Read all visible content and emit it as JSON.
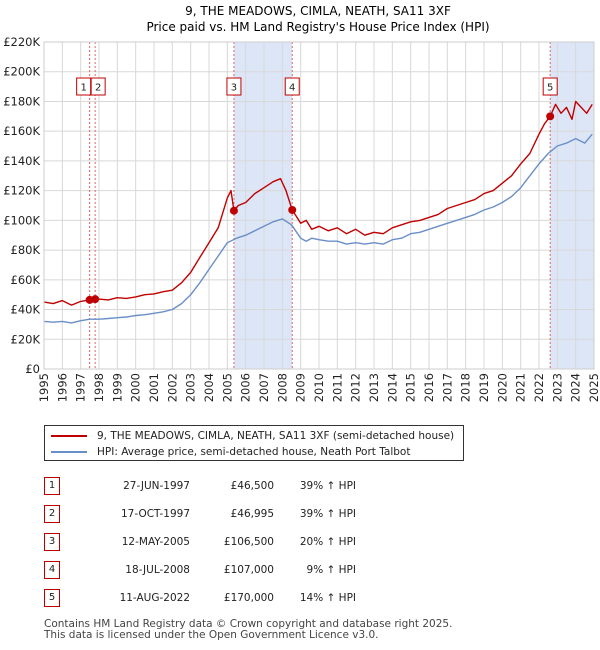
{
  "chart_data": {
    "type": "line",
    "title": "9, THE MEADOWS, CIMLA, NEATH, SA11 3XF",
    "subtitle": "Price paid vs. HM Land Registry's House Price Index (HPI)",
    "xlim": [
      1995,
      2025
    ],
    "ylim": [
      0,
      220000
    ],
    "y_ticks": [
      0,
      20000,
      40000,
      60000,
      80000,
      100000,
      120000,
      140000,
      160000,
      180000,
      200000,
      220000
    ],
    "y_tick_labels": [
      "£0",
      "£20K",
      "£40K",
      "£60K",
      "£80K",
      "£100K",
      "£120K",
      "£140K",
      "£160K",
      "£180K",
      "£200K",
      "£220K"
    ],
    "x_ticks": [
      1995,
      1996,
      1997,
      1998,
      1999,
      2000,
      2001,
      2002,
      2003,
      2004,
      2005,
      2006,
      2007,
      2008,
      2009,
      2010,
      2011,
      2012,
      2013,
      2014,
      2015,
      2016,
      2017,
      2018,
      2019,
      2020,
      2021,
      2022,
      2023,
      2024,
      2025
    ],
    "x_tick_labels": [
      "1995",
      "1996",
      "1997",
      "1998",
      "1999",
      "2000",
      "2001",
      "2002",
      "2003",
      "2004",
      "2005",
      "2006",
      "2007",
      "2008",
      "2009",
      "2010",
      "2011",
      "2012",
      "2013",
      "2014",
      "2015",
      "2016",
      "2017",
      "2018",
      "2019",
      "2020",
      "2021",
      "2022",
      "2023",
      "2024",
      "2025"
    ],
    "shaded_ranges": [
      [
        2005.36,
        2008.54
      ],
      [
        2022.61,
        2025.0
      ]
    ],
    "colors": {
      "property": "#c00000",
      "hpi": "#6a8fc8",
      "shade": "#dde6f7",
      "grid": "#d8d8d8",
      "sale_line": "#e06666"
    },
    "series": [
      {
        "name": "9, THE MEADOWS, CIMLA, NEATH, SA11 3XF (semi-detached house)",
        "color": "#c00000",
        "x": [
          1995.0,
          1995.5,
          1996.0,
          1996.5,
          1997.0,
          1997.49,
          1997.79,
          1998.0,
          1998.5,
          1999.0,
          1999.5,
          2000.0,
          2000.5,
          2001.0,
          2001.5,
          2002.0,
          2002.5,
          2003.0,
          2003.5,
          2004.0,
          2004.5,
          2005.0,
          2005.2,
          2005.36,
          2005.6,
          2006.0,
          2006.5,
          2007.0,
          2007.5,
          2007.9,
          2008.2,
          2008.54,
          2008.8,
          2009.0,
          2009.3,
          2009.6,
          2010.0,
          2010.5,
          2011.0,
          2011.5,
          2012.0,
          2012.5,
          2013.0,
          2013.5,
          2014.0,
          2014.5,
          2015.0,
          2015.5,
          2016.0,
          2016.5,
          2017.0,
          2017.5,
          2018.0,
          2018.5,
          2019.0,
          2019.5,
          2020.0,
          2020.5,
          2021.0,
          2021.5,
          2022.0,
          2022.3,
          2022.61,
          2022.9,
          2023.2,
          2023.5,
          2023.8,
          2024.0,
          2024.3,
          2024.6,
          2024.9
        ],
        "y": [
          45000,
          44000,
          46000,
          43000,
          45500,
          46500,
          46995,
          47000,
          46500,
          48000,
          47500,
          48500,
          50000,
          50500,
          52000,
          53000,
          58000,
          65000,
          75000,
          85000,
          95000,
          115000,
          120000,
          106500,
          110000,
          112000,
          118000,
          122000,
          126000,
          128000,
          120000,
          107000,
          102000,
          98000,
          100000,
          94000,
          96000,
          93000,
          95000,
          91000,
          94000,
          90000,
          92000,
          91000,
          95000,
          97000,
          99000,
          100000,
          102000,
          104000,
          108000,
          110000,
          112000,
          114000,
          118000,
          120000,
          125000,
          130000,
          138000,
          145000,
          158000,
          165000,
          170000,
          178000,
          172000,
          176000,
          168000,
          180000,
          176000,
          172000,
          178000
        ]
      },
      {
        "name": "HPI: Average price, semi-detached house, Neath Port Talbot",
        "color": "#6a8fc8",
        "x": [
          1995.0,
          1995.5,
          1996.0,
          1996.5,
          1997.0,
          1997.5,
          1998.0,
          1998.5,
          1999.0,
          1999.5,
          2000.0,
          2000.5,
          2001.0,
          2001.5,
          2002.0,
          2002.5,
          2003.0,
          2003.5,
          2004.0,
          2004.5,
          2005.0,
          2005.5,
          2006.0,
          2006.5,
          2007.0,
          2007.5,
          2008.0,
          2008.5,
          2009.0,
          2009.3,
          2009.6,
          2010.0,
          2010.5,
          2011.0,
          2011.5,
          2012.0,
          2012.5,
          2013.0,
          2013.5,
          2014.0,
          2014.5,
          2015.0,
          2015.5,
          2016.0,
          2016.5,
          2017.0,
          2017.5,
          2018.0,
          2018.5,
          2019.0,
          2019.5,
          2020.0,
          2020.5,
          2021.0,
          2021.5,
          2022.0,
          2022.5,
          2023.0,
          2023.5,
          2024.0,
          2024.5,
          2024.9
        ],
        "y": [
          32000,
          31500,
          32000,
          31000,
          32500,
          33500,
          33500,
          34000,
          34500,
          35000,
          36000,
          36500,
          37500,
          38500,
          40000,
          44000,
          50000,
          58000,
          67000,
          76000,
          85000,
          88000,
          90000,
          93000,
          96000,
          99000,
          101000,
          97000,
          88000,
          86000,
          88000,
          87000,
          86000,
          86000,
          84000,
          85000,
          84000,
          85000,
          84000,
          87000,
          88000,
          91000,
          92000,
          94000,
          96000,
          98000,
          100000,
          102000,
          104000,
          107000,
          109000,
          112000,
          116000,
          122000,
          130000,
          138000,
          145000,
          150000,
          152000,
          155000,
          152000,
          158000
        ]
      }
    ],
    "sales": [
      {
        "label": "1",
        "x": 1997.49,
        "price": 46500
      },
      {
        "label": "2",
        "x": 1997.79,
        "price": 46995
      },
      {
        "label": "3",
        "x": 2005.36,
        "price": 106500
      },
      {
        "label": "4",
        "x": 2008.54,
        "price": 107000
      },
      {
        "label": "5",
        "x": 2022.61,
        "price": 170000
      }
    ]
  },
  "legend": {
    "property_label": "9, THE MEADOWS, CIMLA, NEATH, SA11 3XF (semi-detached house)",
    "hpi_label": "HPI: Average price, semi-detached house, Neath Port Talbot"
  },
  "table": {
    "rows": [
      {
        "num": "1",
        "date": "27-JUN-1997",
        "price": "£46,500",
        "pct": "39% ↑ HPI"
      },
      {
        "num": "2",
        "date": "17-OCT-1997",
        "price": "£46,995",
        "pct": "39% ↑ HPI"
      },
      {
        "num": "3",
        "date": "12-MAY-2005",
        "price": "£106,500",
        "pct": "20% ↑ HPI"
      },
      {
        "num": "4",
        "date": "18-JUL-2008",
        "price": "£107,000",
        "pct": "9% ↑ HPI"
      },
      {
        "num": "5",
        "date": "11-AUG-2022",
        "price": "£170,000",
        "pct": "14% ↑ HPI"
      }
    ]
  },
  "footer": {
    "line1": "Contains HM Land Registry data © Crown copyright and database right 2025.",
    "line2": "This data is licensed under the Open Government Licence v3.0."
  }
}
